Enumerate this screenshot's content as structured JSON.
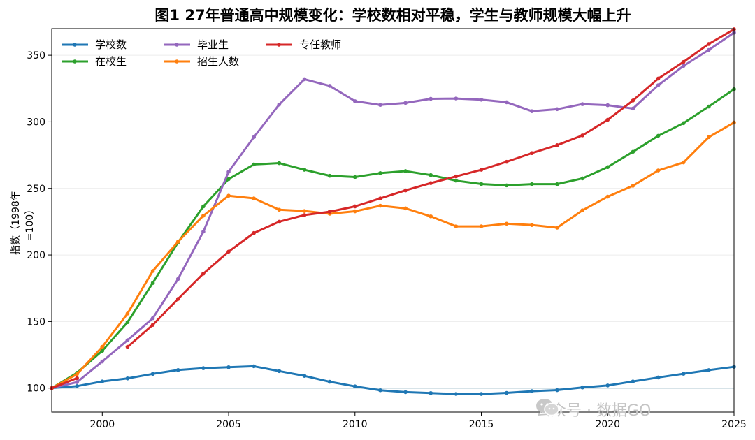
{
  "chart_data": {
    "type": "line",
    "title": "图1 27年普通高中规模变化：学校数相对平稳，学生与教师规模大幅上升",
    "xlabel": "",
    "ylabel": "指数（1998年=100）",
    "xlim": [
      1998,
      2025
    ],
    "ylim": [
      82,
      370
    ],
    "xticks": [
      2000,
      2005,
      2010,
      2015,
      2020,
      2025
    ],
    "yticks": [
      100,
      150,
      200,
      250,
      300,
      350
    ],
    "reference_line": 100,
    "grid": "horizontal",
    "legend_position": "top-left",
    "series": [
      {
        "name": "学校数",
        "color": "#1f77b4",
        "x": [
          1998,
          1999,
          2000,
          2001,
          2002,
          2003,
          2004,
          2005,
          2006,
          2007,
          2008,
          2009,
          2010,
          2011,
          2012,
          2013,
          2014,
          2015,
          2016,
          2017,
          2018,
          2019,
          2020,
          2021,
          2022,
          2023,
          2024,
          2025
        ],
        "values": [
          100,
          101.5,
          105,
          107.3,
          110.7,
          113.6,
          115,
          115.7,
          116.4,
          112.8,
          109.2,
          104.8,
          101.3,
          98.4,
          97,
          96.3,
          95.6,
          95.6,
          96.4,
          97.7,
          98.5,
          100.5,
          102,
          105,
          108,
          110.8,
          113.5,
          116
        ]
      },
      {
        "name": "在校生",
        "color": "#2ca02c",
        "x": [
          1998,
          1999,
          2000,
          2001,
          2002,
          2003,
          2004,
          2005,
          2006,
          2007,
          2008,
          2009,
          2010,
          2011,
          2012,
          2013,
          2014,
          2015,
          2016,
          2017,
          2018,
          2019,
          2020,
          2021,
          2022,
          2023,
          2024,
          2025
        ],
        "values": [
          100,
          111.5,
          128,
          149.5,
          179,
          209.5,
          236.5,
          257,
          268,
          269,
          264,
          259.5,
          258.5,
          261.5,
          263,
          260,
          255.8,
          253.3,
          252.3,
          253.2,
          253.2,
          257.5,
          266,
          277.5,
          289.5,
          299,
          311.5,
          324.5
        ]
      },
      {
        "name": "毕业生",
        "color": "#9467bd",
        "x": [
          1998,
          1999,
          2000,
          2001,
          2002,
          2003,
          2004,
          2005,
          2006,
          2007,
          2008,
          2009,
          2010,
          2011,
          2012,
          2013,
          2014,
          2015,
          2016,
          2017,
          2018,
          2019,
          2020,
          2021,
          2022,
          2023,
          2024,
          2025
        ],
        "values": [
          100,
          104.5,
          120,
          136,
          152.5,
          182,
          217.5,
          262.5,
          288.5,
          313,
          332,
          327,
          315.5,
          312.7,
          314.2,
          317.3,
          317.5,
          316.6,
          314.7,
          308,
          309.5,
          313.3,
          312.5,
          310,
          327.5,
          342,
          354,
          367
        ]
      },
      {
        "name": "招生人数",
        "color": "#ff7f0e",
        "x": [
          1998,
          1999,
          2000,
          2001,
          2002,
          2003,
          2004,
          2005,
          2006,
          2007,
          2008,
          2009,
          2010,
          2011,
          2012,
          2013,
          2014,
          2015,
          2016,
          2017,
          2018,
          2019,
          2020,
          2021,
          2022,
          2023,
          2024,
          2025
        ],
        "values": [
          100,
          110.5,
          131,
          156,
          188,
          210,
          229.5,
          244.5,
          242.5,
          234,
          233,
          231,
          232.8,
          237,
          235,
          229,
          221.5,
          221.5,
          223.5,
          222.5,
          220.5,
          233.5,
          243.8,
          252,
          263.5,
          269.5,
          288.5,
          299.5
        ]
      },
      {
        "name": "专任教师",
        "color": "#d62728",
        "x": [
          1998,
          1999,
          null,
          2001,
          2002,
          2003,
          2004,
          2005,
          2006,
          2007,
          2008,
          2009,
          2010,
          2011,
          2012,
          2013,
          2014,
          2015,
          2016,
          2017,
          2018,
          2019,
          2020,
          2021,
          2022,
          2023,
          2024,
          2025
        ],
        "values": [
          100,
          107.5,
          null,
          131,
          147.5,
          167,
          186,
          202.5,
          216.5,
          225,
          230,
          232.5,
          236.5,
          242.5,
          248.5,
          254,
          259,
          264,
          270,
          276.5,
          282.5,
          289.8,
          301.5,
          316,
          332.5,
          345,
          358.5,
          369.5
        ]
      }
    ]
  },
  "watermark": "公众号 · 数据GO"
}
